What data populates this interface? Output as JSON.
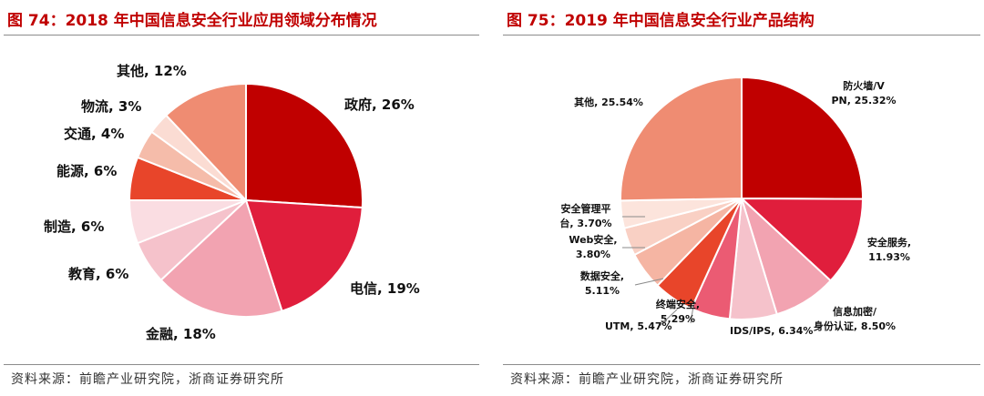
{
  "left_panel": {
    "title": "图 74：2018 年中国信息安全行业应用领域分布情况",
    "source": "资料来源：前瞻产业研究院，浙商证券研究所"
  },
  "right_panel": {
    "title": "图 75：2019 年中国信息安全行业产品结构",
    "source": "资料来源：前瞻产业研究院，浙商证券研究所"
  },
  "chart_data": [
    {
      "type": "pie",
      "title": "2018 年中国信息安全行业应用领域分布情况",
      "unit": "%",
      "slices": [
        {
          "label": "政府, 26%",
          "name": "政府",
          "value": 26,
          "color": "#c00000"
        },
        {
          "label": "电信, 19%",
          "name": "电信",
          "value": 19,
          "color": "#e01e3c"
        },
        {
          "label": "金融, 18%",
          "name": "金融",
          "value": 18,
          "color": "#f2a3b1"
        },
        {
          "label": "教育, 6%",
          "name": "教育",
          "value": 6,
          "color": "#f5c2cb"
        },
        {
          "label": "制造, 6%",
          "name": "制造",
          "value": 6,
          "color": "#fadde2"
        },
        {
          "label": "能源, 6%",
          "name": "能源",
          "value": 6,
          "color": "#e8452a"
        },
        {
          "label": "交通, 4%",
          "name": "交通",
          "value": 4,
          "color": "#f5bcaa"
        },
        {
          "label": "物流, 3%",
          "name": "物流",
          "value": 3,
          "color": "#fbdcd3"
        },
        {
          "label": "其他, 12%",
          "name": "其他",
          "value": 12,
          "color": "#ef8c72"
        }
      ]
    },
    {
      "type": "pie",
      "title": "2019 年中国信息安全行业产品结构",
      "unit": "%",
      "slices": [
        {
          "label": "防火墙/VPN, 25.32%",
          "name": "防火墙/VPN",
          "value": 25.32,
          "color": "#c00000"
        },
        {
          "label": "安全服务, 11.93%",
          "name": "安全服务",
          "value": 11.93,
          "color": "#e01e3c"
        },
        {
          "label": "信息加密/身份认证, 8.50%",
          "name": "信息加密/身份认证",
          "value": 8.5,
          "color": "#f2a3b1"
        },
        {
          "label": "IDS/IPS, 6.34%",
          "name": "IDS/IPS",
          "value": 6.34,
          "color": "#f5c2cb"
        },
        {
          "label": "终端安全, 5.29%",
          "name": "终端安全",
          "value": 5.29,
          "color": "#eb5b73"
        },
        {
          "label": "UTM, 5.47%",
          "name": "UTM",
          "value": 5.47,
          "color": "#e8452a"
        },
        {
          "label": "数据安全, 5.11%",
          "name": "数据安全",
          "value": 5.11,
          "color": "#f5b5a3"
        },
        {
          "label": "Web安全, 3.80%",
          "name": "Web安全",
          "value": 3.8,
          "color": "#f9d0c4"
        },
        {
          "label": "安全管理平台, 3.70%",
          "name": "安全管理平台",
          "value": 3.7,
          "color": "#fce4dc"
        },
        {
          "label": "其他, 25.54%",
          "name": "其他",
          "value": 25.54,
          "color": "#ef8c72"
        }
      ]
    }
  ]
}
